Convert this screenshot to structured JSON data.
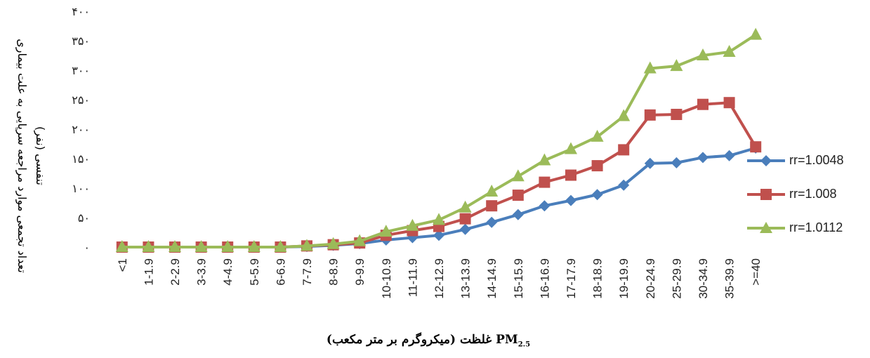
{
  "chart_data": {
    "type": "line",
    "ylabel_line1": "تعداد تجمعی موارد مراجعه سرپایی به علت بیماری",
    "ylabel_line2": "تنفسی (نفر)",
    "xlabel_text": "غلظت (میکروگرم بر متر مکعب)",
    "xlabel_pm": "PM",
    "xlabel_sub": "2.5",
    "ylim": [
      0,
      400
    ],
    "yticks": [
      "۰",
      "۵۰",
      "۱۰۰",
      "۱۵۰",
      "۲۰۰",
      "۲۵۰",
      "۳۰۰",
      "۳۵۰",
      "۴۰۰"
    ],
    "grid": false,
    "legend_position": "right",
    "categories": [
      "<1",
      "1-1.9",
      "2-2.9",
      "3-3.9",
      "4-4.9",
      "5-5.9",
      "6-6.9",
      "7-7.9",
      "8-8.9",
      "9-9.9",
      "10-10.9",
      "11-11.9",
      "12-12.9",
      "13-13.9",
      "14-14.9",
      "15-15.9",
      "16-16.9",
      "17-17.9",
      "18-18.9",
      "19-19.9",
      "20-24.9",
      "25-29.9",
      "30-34.9",
      "35-39.9",
      ">=40"
    ],
    "series": [
      {
        "name": "rr=1.0048",
        "color": "#4a7ebb",
        "marker": "diamond",
        "values": [
          0,
          0,
          0,
          0,
          0,
          0,
          0,
          1,
          3,
          6,
          12,
          16,
          20,
          30,
          42,
          55,
          70,
          79,
          89,
          105,
          142,
          143,
          152,
          155,
          168
        ]
      },
      {
        "name": "rr=1.008",
        "color": "#c0504d",
        "marker": "square",
        "values": [
          0,
          0,
          0,
          0,
          0,
          0,
          0,
          2,
          4,
          7,
          20,
          28,
          35,
          48,
          70,
          88,
          110,
          122,
          138,
          165,
          224,
          225,
          242,
          245,
          170
        ]
      },
      {
        "name": "rr=1.0112",
        "color": "#9bbb59",
        "marker": "triangle",
        "values": [
          0,
          0,
          0,
          0,
          0,
          0,
          0,
          2,
          5,
          10,
          26,
          36,
          46,
          67,
          94,
          120,
          147,
          166,
          187,
          222,
          303,
          307,
          325,
          331,
          360
        ]
      }
    ]
  }
}
